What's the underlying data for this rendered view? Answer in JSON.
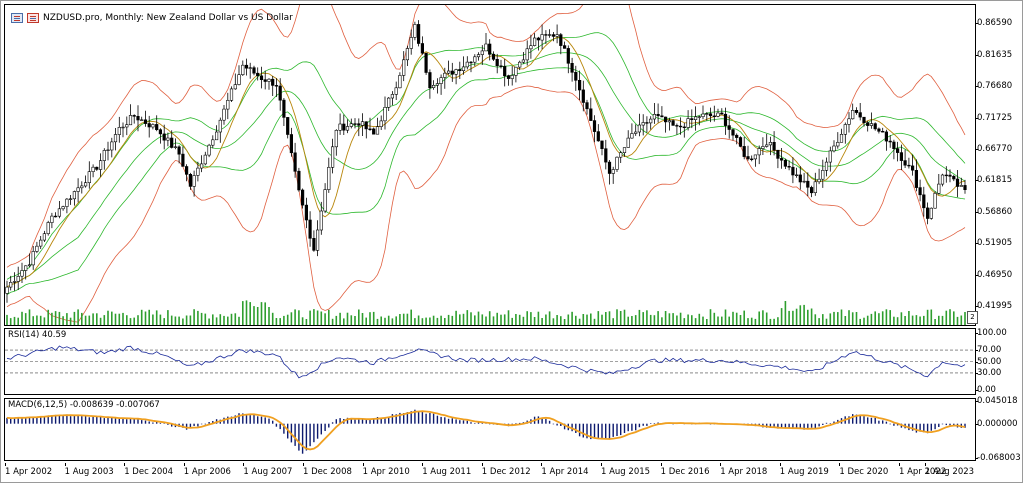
{
  "window": {
    "title": "NZDUSD.pro, Monthly:  New Zealand Dollar vs US Dollar",
    "icons": [
      "chart-window-icon",
      "chart-type-icon"
    ]
  },
  "main_axis": [
    "0.86590",
    "0.81635",
    "0.76680",
    "0.71725",
    "0.66770",
    "0.61815",
    "0.56860",
    "0.51905",
    "0.46950",
    "0.41995"
  ],
  "rsi": {
    "label": "RSI(14) 40.59",
    "axis": [
      "100.00",
      "70.00",
      "50.00",
      "30.00",
      "0.00"
    ]
  },
  "macd": {
    "label": "MACD(6,12,5) -0.008639 -0.007067",
    "axis": [
      "0.045018",
      "0.000000",
      "-0.068003"
    ]
  },
  "x_axis": [
    "1 Apr 2002",
    "1 Aug 2003",
    "1 Dec 2004",
    "1 Apr 2006",
    "1 Aug 2007",
    "1 Dec 2008",
    "1 Apr 2010",
    "1 Aug 2011",
    "1 Dec 2012",
    "1 Apr 2014",
    "1 Aug 2015",
    "1 Dec 2016",
    "1 Apr 2018",
    "1 Aug 2019",
    "1 Dec 2020",
    "1 Apr 2022",
    "1 Aug 2023"
  ],
  "corner_marker": "2",
  "colors": {
    "bands_outer": "#e06040",
    "bands_inner": "#2db82d",
    "ma": "#b8860b",
    "rsi": "#1a2a9a",
    "macd_hist": "#0d1a6e",
    "macd_signal": "#f0a020",
    "volume": "#2e9e2e"
  },
  "chart_data": {
    "type": "candlestick",
    "symbol": "NZDUSD.pro",
    "timeframe": "Monthly",
    "price_range": [
      0.39,
      0.895
    ],
    "close_path": [
      [
        "2002-04",
        0.45
      ],
      [
        "2002-10",
        0.49
      ],
      [
        "2003-04",
        0.56
      ],
      [
        "2003-10",
        0.6
      ],
      [
        "2004-04",
        0.64
      ],
      [
        "2004-10",
        0.7
      ],
      [
        "2005-02",
        0.72
      ],
      [
        "2005-08",
        0.7
      ],
      [
        "2006-02",
        0.66
      ],
      [
        "2006-05",
        0.61
      ],
      [
        "2006-12",
        0.7
      ],
      [
        "2007-07",
        0.8
      ],
      [
        "2007-12",
        0.78
      ],
      [
        "2008-04",
        0.77
      ],
      [
        "2008-10",
        0.6
      ],
      [
        "2009-02",
        0.51
      ],
      [
        "2009-08",
        0.7
      ],
      [
        "2010-02",
        0.71
      ],
      [
        "2010-06",
        0.69
      ],
      [
        "2010-12",
        0.77
      ],
      [
        "2011-05",
        0.86
      ],
      [
        "2011-09",
        0.77
      ],
      [
        "2012-06",
        0.8
      ],
      [
        "2012-12",
        0.83
      ],
      [
        "2013-06",
        0.78
      ],
      [
        "2014-01",
        0.84
      ],
      [
        "2014-07",
        0.85
      ],
      [
        "2014-12",
        0.78
      ],
      [
        "2015-06",
        0.68
      ],
      [
        "2015-09",
        0.63
      ],
      [
        "2016-03",
        0.69
      ],
      [
        "2016-09",
        0.72
      ],
      [
        "2017-03",
        0.7
      ],
      [
        "2017-09",
        0.72
      ],
      [
        "2018-03",
        0.72
      ],
      [
        "2018-10",
        0.65
      ],
      [
        "2019-03",
        0.68
      ],
      [
        "2019-10",
        0.63
      ],
      [
        "2020-03",
        0.6
      ],
      [
        "2020-08",
        0.66
      ],
      [
        "2021-02",
        0.73
      ],
      [
        "2021-06",
        0.71
      ],
      [
        "2021-12",
        0.68
      ],
      [
        "2022-06",
        0.63
      ],
      [
        "2022-10",
        0.56
      ],
      [
        "2023-02",
        0.63
      ],
      [
        "2023-08",
        0.6
      ]
    ],
    "rsi_path": [
      [
        "2002-04",
        55
      ],
      [
        "2003-06",
        75
      ],
      [
        "2004-06",
        65
      ],
      [
        "2005-01",
        75
      ],
      [
        "2005-10",
        60
      ],
      [
        "2006-05",
        40
      ],
      [
        "2007-07",
        70
      ],
      [
        "2008-04",
        62
      ],
      [
        "2008-10",
        22
      ],
      [
        "2009-08",
        58
      ],
      [
        "2010-06",
        48
      ],
      [
        "2011-05",
        70
      ],
      [
        "2012-06",
        52
      ],
      [
        "2014-01",
        55
      ],
      [
        "2015-03",
        35
      ],
      [
        "2015-09",
        28
      ],
      [
        "2016-09",
        52
      ],
      [
        "2018-03",
        52
      ],
      [
        "2019-10",
        38
      ],
      [
        "2020-03",
        30
      ],
      [
        "2021-02",
        68
      ],
      [
        "2022-06",
        35
      ],
      [
        "2022-10",
        25
      ],
      [
        "2023-02",
        50
      ],
      [
        "2023-08",
        40.59
      ]
    ],
    "rsi_levels": [
      70,
      50,
      30
    ],
    "macd_path": [
      [
        "2002-04",
        0.01
      ],
      [
        "2003-06",
        0.018
      ],
      [
        "2004-06",
        0.012
      ],
      [
        "2005-03",
        0.01
      ],
      [
        "2006-04",
        -0.01
      ],
      [
        "2007-06",
        0.02
      ],
      [
        "2008-02",
        0.012
      ],
      [
        "2008-11",
        -0.06
      ],
      [
        "2009-08",
        0.01
      ],
      [
        "2010-06",
        0.01
      ],
      [
        "2011-05",
        0.026
      ],
      [
        "2012-06",
        0.005
      ],
      [
        "2013-06",
        -0.005
      ],
      [
        "2014-02",
        0.015
      ],
      [
        "2015-03",
        -0.03
      ],
      [
        "2015-09",
        -0.03
      ],
      [
        "2016-09",
        0.002
      ],
      [
        "2018-03",
        0.0
      ],
      [
        "2019-10",
        -0.01
      ],
      [
        "2020-03",
        -0.01
      ],
      [
        "2021-02",
        0.018
      ],
      [
        "2021-08",
        0.01
      ],
      [
        "2022-06",
        -0.015
      ],
      [
        "2022-10",
        -0.02
      ],
      [
        "2023-02",
        0.0
      ],
      [
        "2023-08",
        -0.008639
      ]
    ],
    "macd_signal_last": -0.007067
  }
}
